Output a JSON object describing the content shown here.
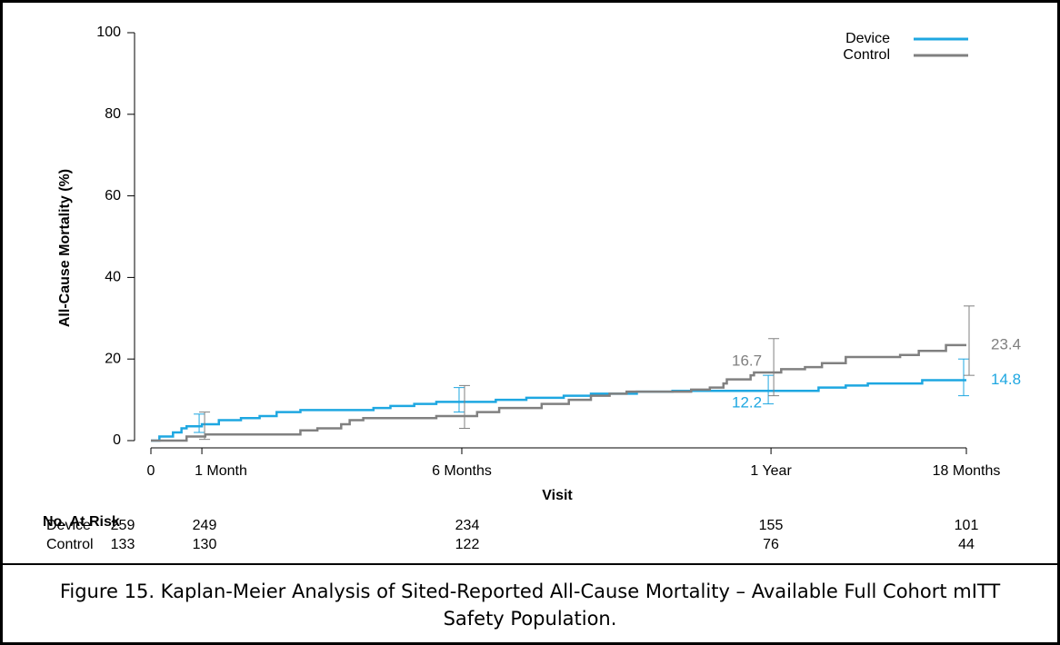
{
  "chart_data": {
    "type": "step",
    "xlabel": "Visit",
    "ylabel": "All-Cause Mortality (%)",
    "xlim": [
      0,
      480
    ],
    "ylim": [
      0,
      100
    ],
    "xticks": [
      {
        "value": 0,
        "label": "0"
      },
      {
        "value": 30,
        "label": "1 Month"
      },
      {
        "value": 183,
        "label": "6 Months"
      },
      {
        "value": 365,
        "label": "1 Year"
      },
      {
        "value": 480,
        "label": "18 Months"
      }
    ],
    "yticks": [
      0,
      20,
      40,
      60,
      80,
      100
    ],
    "legend": "upper right",
    "series": [
      {
        "name": "Device",
        "color": "#1ea7e1",
        "x": [
          0,
          5,
          13,
          18,
          21,
          30,
          40,
          53,
          64,
          74,
          88,
          131,
          141,
          155,
          168,
          203,
          221,
          243,
          259,
          286,
          307,
          393,
          409,
          422,
          454,
          480
        ],
        "values": [
          0,
          1,
          2,
          3,
          3.5,
          4,
          5,
          5.5,
          6,
          7,
          7.5,
          8,
          8.5,
          9,
          9.5,
          10,
          10.5,
          11,
          11.5,
          12,
          12.2,
          13,
          13.5,
          14,
          14.8,
          14.8
        ],
        "ci_x": [
          30,
          183,
          365,
          480
        ],
        "ci_lower": [
          2,
          7,
          9,
          11
        ],
        "ci_upper": [
          6.5,
          13,
          16,
          20
        ],
        "labels": [
          {
            "x": 365,
            "value": 12.2
          },
          {
            "x": 480,
            "value": 14.8
          }
        ]
      },
      {
        "name": "Control",
        "color": "#808080",
        "x": [
          0,
          18,
          21,
          32,
          82,
          88,
          98,
          112,
          117,
          125,
          168,
          192,
          205,
          230,
          246,
          259,
          270,
          280,
          318,
          329,
          337,
          339,
          353,
          355,
          371,
          385,
          395,
          409,
          441,
          452,
          468,
          480
        ],
        "values": [
          0,
          0,
          1,
          1.5,
          1.5,
          2.5,
          3,
          4,
          5,
          5.5,
          6,
          7,
          8,
          9,
          10,
          11,
          11.5,
          12,
          12.5,
          13,
          14,
          15,
          16,
          16.7,
          17.5,
          18,
          19,
          20.5,
          21,
          22,
          23.4,
          23.4
        ],
        "ci_x": [
          30,
          183,
          365,
          480
        ],
        "ci_lower": [
          0.3,
          3,
          11,
          16
        ],
        "ci_upper": [
          7,
          13.5,
          25,
          33
        ],
        "labels": [
          {
            "x": 365,
            "value": 16.7
          },
          {
            "x": 480,
            "value": 23.4
          }
        ]
      }
    ],
    "risk_table": {
      "title": "No. At Risk",
      "rows": [
        {
          "name": "Device",
          "values": [
            259,
            249,
            234,
            155,
            101
          ]
        },
        {
          "name": "Control",
          "values": [
            133,
            130,
            122,
            76,
            44
          ]
        }
      ]
    }
  },
  "caption": "Figure 15. Kaplan-Meier Analysis of Sited-Reported All-Cause Mortality – Available Full Cohort mITT Safety Population."
}
